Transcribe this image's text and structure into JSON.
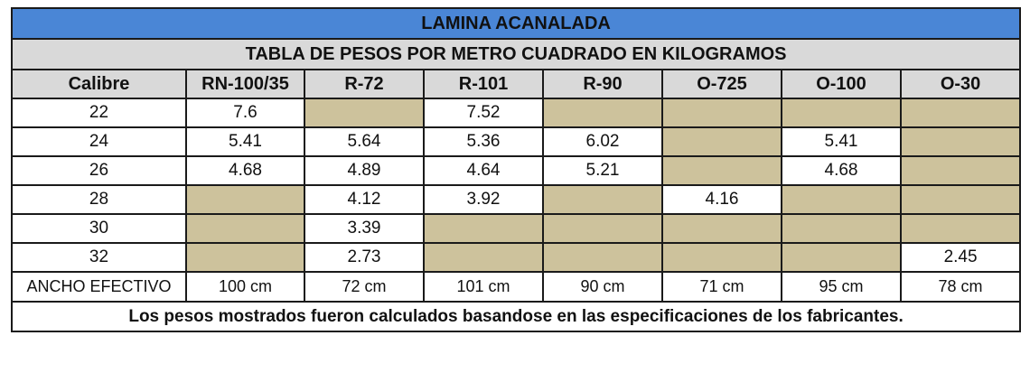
{
  "title": "LAMINA ACANALADA",
  "subtitle": "TABLA DE PESOS POR METRO CUADRADO EN KILOGRAMOS",
  "columns": [
    "Calibre",
    "RN-100/35",
    "R-72",
    "R-101",
    "R-90",
    "O-725",
    "O-100",
    "O-30"
  ],
  "rows": [
    {
      "calibre": "22",
      "values": [
        "7.6",
        "",
        "7.52",
        "",
        "",
        "",
        ""
      ]
    },
    {
      "calibre": "24",
      "values": [
        "5.41",
        "5.64",
        "5.36",
        "6.02",
        "",
        "5.41",
        ""
      ]
    },
    {
      "calibre": "26",
      "values": [
        "4.68",
        "4.89",
        "4.64",
        "5.21",
        "",
        "4.68",
        ""
      ]
    },
    {
      "calibre": "28",
      "values": [
        "",
        "4.12",
        "3.92",
        "",
        "4.16",
        "",
        ""
      ]
    },
    {
      "calibre": "30",
      "values": [
        "",
        "3.39",
        "",
        "",
        "",
        "",
        ""
      ]
    },
    {
      "calibre": "32",
      "values": [
        "",
        "2.73",
        "",
        "",
        "",
        "",
        "2.45"
      ]
    }
  ],
  "ancho_efectivo": {
    "label": "ANCHO EFECTIVO",
    "values": [
      "100 cm",
      "72 cm",
      "101 cm",
      "90 cm",
      "71 cm",
      "95 cm",
      "78 cm"
    ]
  },
  "note": "Los pesos mostrados fueron calculados basandose en las especificaciones de los fabricantes.",
  "colors": {
    "title_bg": "#4a86d6",
    "header_bg": "#d9d9d9",
    "empty_cell": "#cdc29c",
    "border": "#1a1a1a"
  }
}
